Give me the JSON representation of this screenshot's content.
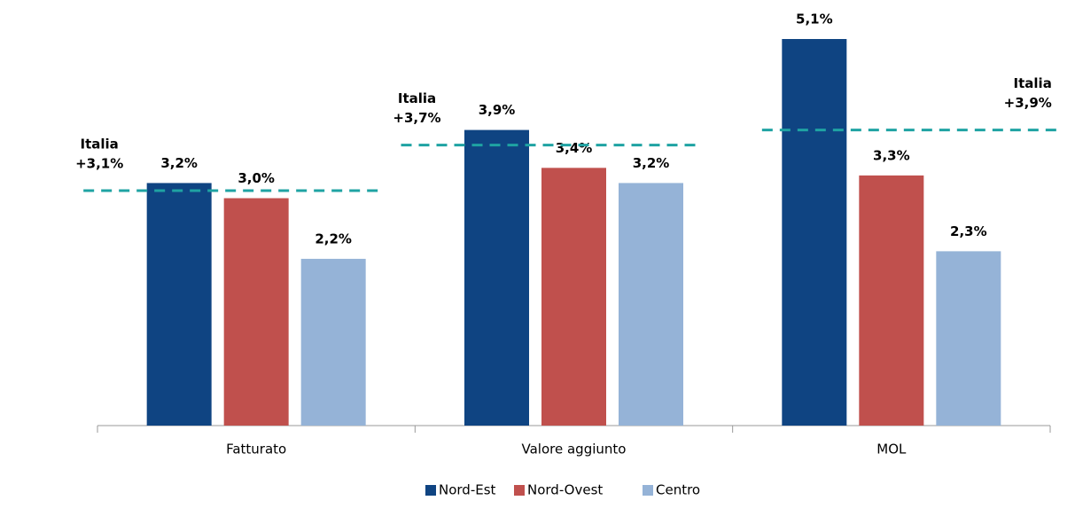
{
  "chart_data": {
    "type": "bar",
    "categories": [
      "Fatturato",
      "Valore aggiunto",
      "MOL"
    ],
    "series": [
      {
        "name": "Nord-Est",
        "color": "#0f4482",
        "values": [
          3.2,
          3.9,
          5.1
        ],
        "value_labels": [
          "3,2%",
          "3,9%",
          "5,1%"
        ]
      },
      {
        "name": "Nord-Ovest",
        "color": "#c0504d",
        "values": [
          3.0,
          3.4,
          3.3
        ],
        "value_labels": [
          "3,0%",
          "3,4%",
          "3,3%"
        ]
      },
      {
        "name": "Centro",
        "color": "#95b3d7",
        "values": [
          2.2,
          3.2,
          2.3
        ],
        "value_labels": [
          "2,2%",
          "3,2%",
          "2,3%"
        ]
      }
    ],
    "reference": {
      "name": "Italia",
      "color": "#1fa3a3",
      "values": [
        3.1,
        3.7,
        3.9
      ],
      "value_labels": [
        "+3,1%",
        "+3,7%",
        "+3,9%"
      ]
    },
    "legend": "bottom"
  }
}
